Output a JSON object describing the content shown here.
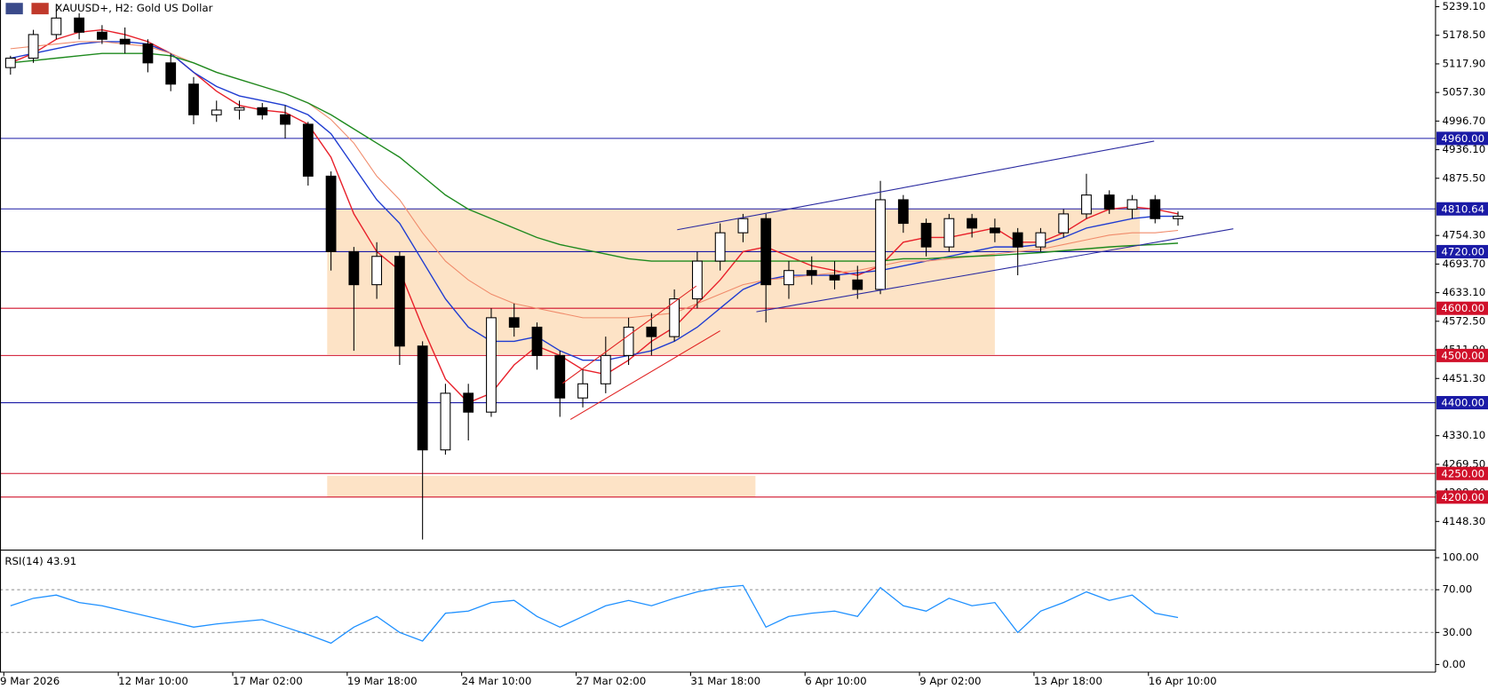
{
  "chart_data": [
    {
      "type": "candlestick",
      "title": "XAUUSD+, H2:  Gold US Dollar",
      "categories": [
        "9 Mar 2026",
        null,
        null,
        null,
        null,
        "12 Mar 10:00",
        null,
        null,
        null,
        null,
        "17 Mar 02:00",
        null,
        null,
        null,
        null,
        "19 Mar 18:00",
        null,
        null,
        null,
        null,
        "24 Mar 10:00",
        null,
        null,
        null,
        null,
        "27 Mar 02:00",
        null,
        null,
        null,
        null,
        "31 Mar 18:00",
        null,
        null,
        null,
        null,
        "6 Apr 10:00",
        null,
        null,
        null,
        null,
        "9 Apr 02:00",
        null,
        null,
        null,
        null,
        "13 Apr 18:00",
        null,
        null,
        null,
        null,
        "16 Apr 10:00",
        null
      ],
      "open": [
        5110,
        5130,
        5180,
        5215,
        5185,
        5170,
        5160,
        5120,
        5075,
        5010,
        5020,
        5025,
        5010,
        4990,
        4880,
        4720,
        4650,
        4710,
        4520,
        4300,
        4420,
        4380,
        4580,
        4560,
        4500,
        4410,
        4440,
        4500,
        4560,
        4540,
        4620,
        4700,
        4760,
        4790,
        4650,
        4680,
        4670,
        4660,
        4640,
        4830,
        4780,
        4730,
        4790,
        4770,
        4760,
        4730,
        4760,
        4800,
        4840,
        4810,
        4830,
        4790
      ],
      "high": [
        5135,
        5190,
        5245,
        5225,
        5200,
        5195,
        5170,
        5140,
        5090,
        5040,
        5040,
        5035,
        5030,
        4995,
        4890,
        4730,
        4740,
        4720,
        4530,
        4440,
        4440,
        4600,
        4610,
        4570,
        4510,
        4470,
        4540,
        4580,
        4590,
        4640,
        4720,
        4780,
        4800,
        4800,
        4700,
        4710,
        4700,
        4690,
        4870,
        4840,
        4790,
        4800,
        4800,
        4790,
        4770,
        4770,
        4810,
        4885,
        4850,
        4840,
        4840,
        4805
      ],
      "low": [
        5095,
        5120,
        5170,
        5170,
        5160,
        5140,
        5100,
        5060,
        4990,
        4995,
        5000,
        5000,
        4960,
        4860,
        4680,
        4510,
        4620,
        4480,
        4110,
        4290,
        4320,
        4370,
        4540,
        4470,
        4370,
        4390,
        4420,
        4480,
        4500,
        4530,
        4600,
        4680,
        4740,
        4570,
        4620,
        4650,
        4640,
        4620,
        4630,
        4760,
        4710,
        4720,
        4750,
        4740,
        4670,
        4720,
        4750,
        4790,
        4800,
        4790,
        4780,
        4775
      ],
      "close": [
        5130,
        5180,
        5215,
        5185,
        5170,
        5160,
        5120,
        5075,
        5010,
        5020,
        5025,
        5010,
        4990,
        4880,
        4720,
        4650,
        4710,
        4520,
        4300,
        4420,
        4380,
        4580,
        4560,
        4500,
        4410,
        4440,
        4500,
        4560,
        4540,
        4620,
        4700,
        4760,
        4790,
        4650,
        4680,
        4670,
        4660,
        4640,
        4830,
        4780,
        4730,
        4790,
        4770,
        4760,
        4730,
        4760,
        4800,
        4840,
        4810,
        4830,
        4790,
        4795
      ],
      "up_color": "#ffffff",
      "down_color": "#000000",
      "series": [
        {
          "color": "#e8202a",
          "values": [
            5120,
            5140,
            5170,
            5185,
            5190,
            5180,
            5165,
            5140,
            5100,
            5060,
            5030,
            5020,
            5015,
            4990,
            4920,
            4800,
            4720,
            4680,
            4560,
            4450,
            4400,
            4420,
            4480,
            4520,
            4500,
            4470,
            4460,
            4490,
            4530,
            4560,
            4610,
            4660,
            4720,
            4730,
            4710,
            4690,
            4680,
            4670,
            4690,
            4740,
            4750,
            4750,
            4760,
            4770,
            4740,
            4740,
            4760,
            4790,
            4810,
            4815,
            4810,
            4800
          ]
        },
        {
          "color": "#1f3cd1",
          "values": [
            5130,
            5140,
            5150,
            5160,
            5165,
            5165,
            5160,
            5140,
            5100,
            5070,
            5050,
            5040,
            5030,
            5010,
            4970,
            4900,
            4830,
            4780,
            4700,
            4620,
            4560,
            4530,
            4530,
            4540,
            4510,
            4490,
            4490,
            4500,
            4510,
            4530,
            4560,
            4600,
            4640,
            4660,
            4670,
            4670,
            4670,
            4675,
            4680,
            4690,
            4700,
            4710,
            4720,
            4730,
            4730,
            4735,
            4750,
            4770,
            4780,
            4790,
            4795,
            4795
          ]
        },
        {
          "color": "#f08a6a",
          "values": [
            5150,
            5155,
            5160,
            5165,
            5165,
            5160,
            5155,
            5140,
            5120,
            5100,
            5085,
            5070,
            5055,
            5035,
            5000,
            4950,
            4880,
            4830,
            4760,
            4700,
            4660,
            4630,
            4610,
            4600,
            4590,
            4580,
            4580,
            4580,
            4585,
            4590,
            4610,
            4630,
            4650,
            4660,
            4665,
            4670,
            4675,
            4680,
            4690,
            4700,
            4700,
            4705,
            4710,
            4715,
            4720,
            4725,
            4735,
            4745,
            4755,
            4760,
            4760,
            4765
          ]
        },
        {
          "color": "#1e8a1e",
          "values": [
            5120,
            5125,
            5130,
            5135,
            5140,
            5140,
            5140,
            5135,
            5120,
            5100,
            5085,
            5070,
            5055,
            5035,
            5010,
            4980,
            4950,
            4920,
            4880,
            4840,
            4810,
            4790,
            4770,
            4750,
            4735,
            4725,
            4715,
            4705,
            4700,
            4700,
            4700,
            4700,
            4700,
            4700,
            4700,
            4700,
            4700,
            4700,
            4700,
            4705,
            4705,
            4708,
            4710,
            4712,
            4715,
            4718,
            4722,
            4726,
            4730,
            4733,
            4735,
            4738
          ]
        }
      ],
      "ylim": [
        4089.7,
        5253.2
      ],
      "yticks": [
        {
          "value": 5239.1,
          "label": "5239.10"
        },
        {
          "value": 5178.5,
          "label": "5178.50"
        },
        {
          "value": 5117.9,
          "label": "5117.90"
        },
        {
          "value": 5057.3,
          "label": "5057.30"
        },
        {
          "value": 4996.7,
          "label": "4996.70"
        },
        {
          "value": 4936.1,
          "label": "4936.10"
        },
        {
          "value": 4875.5,
          "label": "4875.50"
        },
        {
          "value": 4754.3,
          "label": "4754.30"
        },
        {
          "value": 4693.7,
          "label": "4693.70"
        },
        {
          "value": 4633.1,
          "label": "4633.10"
        },
        {
          "value": 4572.5,
          "label": "4572.50"
        },
        {
          "value": 4511.9,
          "label": "4511.90"
        },
        {
          "value": 4451.3,
          "label": "4451.30"
        },
        {
          "value": 4330.1,
          "label": "4330.10"
        },
        {
          "value": 4269.5,
          "label": "4269.50"
        },
        {
          "value": 4208.9,
          "label": "4208.90"
        },
        {
          "value": 4148.3,
          "label": "4148.30"
        }
      ],
      "levels": [
        {
          "value": 4960,
          "label": "4960.00",
          "color": "#1a1aa6"
        },
        {
          "value": 4810.64,
          "label": "4810.64",
          "color": "#1a1aa6"
        },
        {
          "value": 4720,
          "label": "4720.00",
          "color": "#1a1aa6"
        },
        {
          "value": 4600,
          "label": "4600.00",
          "color": "#d0102a"
        },
        {
          "value": 4500,
          "label": "4500.00",
          "color": "#d0102a"
        },
        {
          "value": 4400,
          "label": "4400.00",
          "color": "#1a1aa6"
        },
        {
          "value": 4250,
          "label": "4250.00",
          "color": "#d0102a"
        },
        {
          "value": 4200,
          "label": "4200.00",
          "color": "#d0102a"
        }
      ]
    },
    {
      "type": "line",
      "title": "RSI(14) 43.91",
      "color": "#1e90ff",
      "values": [
        55,
        62,
        65,
        58,
        55,
        50,
        45,
        40,
        35,
        38,
        40,
        42,
        35,
        28,
        20,
        35,
        45,
        30,
        22,
        48,
        50,
        58,
        60,
        45,
        35,
        45,
        55,
        60,
        55,
        62,
        68,
        72,
        74,
        35,
        45,
        48,
        50,
        45,
        72,
        55,
        50,
        62,
        55,
        58,
        30,
        50,
        58,
        68,
        60,
        65,
        48,
        44
      ],
      "ylim": [
        -7.1,
        106.2
      ],
      "yticks": [
        {
          "value": 100,
          "label": "100.00"
        },
        {
          "value": 70,
          "label": "70.00"
        },
        {
          "value": 30,
          "label": "30.00"
        },
        {
          "value": 0,
          "label": "0.00"
        }
      ],
      "levels": [
        70,
        30
      ]
    }
  ]
}
